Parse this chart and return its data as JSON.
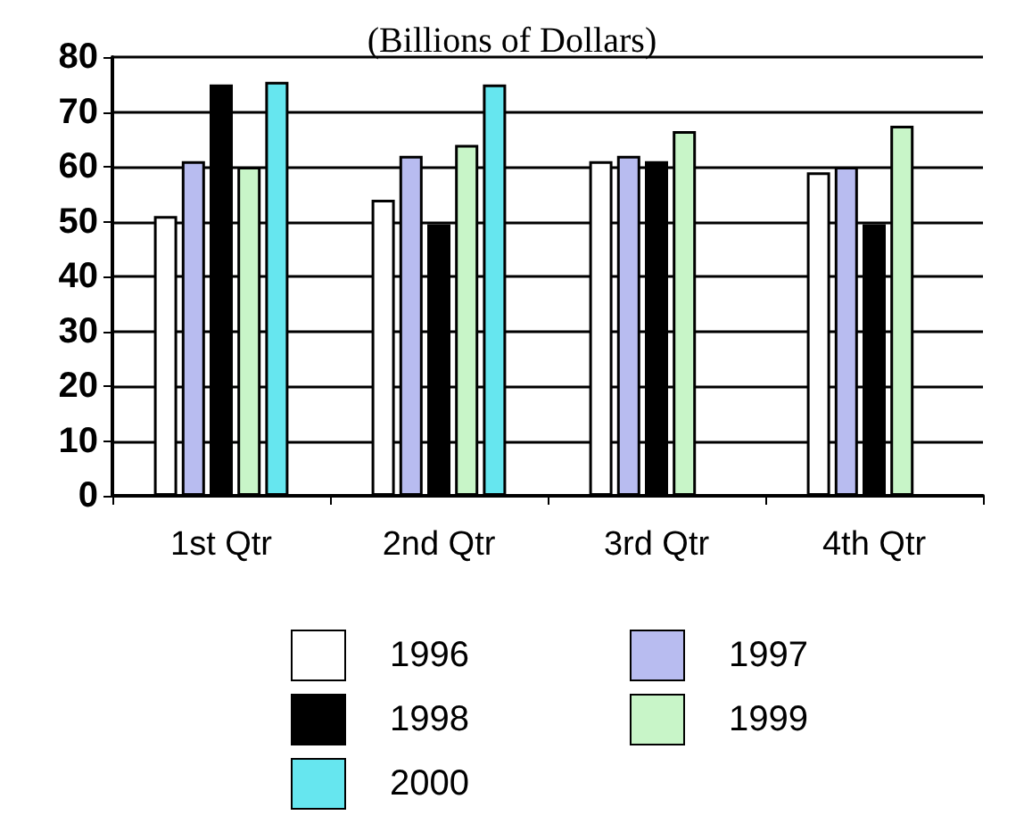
{
  "chart_data": {
    "type": "bar",
    "title": "(Billions of Dollars)",
    "categories": [
      "1st Qtr",
      "2nd Qtr",
      "3rd Qtr",
      "4th Qtr"
    ],
    "series": [
      {
        "name": "1996",
        "color": "#ffffff",
        "values": [
          51,
          54,
          61,
          59
        ]
      },
      {
        "name": "1997",
        "color": "#b8bcf0",
        "values": [
          61,
          62,
          62,
          60
        ]
      },
      {
        "name": "1998",
        "color": "#000000",
        "values": [
          75,
          49.5,
          61,
          49.5
        ]
      },
      {
        "name": "1999",
        "color": "#c8f5c8",
        "values": [
          60,
          64,
          66.5,
          67.5
        ]
      },
      {
        "name": "2000",
        "color": "#66e6ef",
        "values": [
          75.5,
          75,
          null,
          null
        ]
      }
    ],
    "ylim": [
      0,
      80
    ],
    "yticks": [
      0,
      10,
      20,
      30,
      40,
      50,
      60,
      70,
      80
    ],
    "grid": "y",
    "legend": "bottom"
  }
}
